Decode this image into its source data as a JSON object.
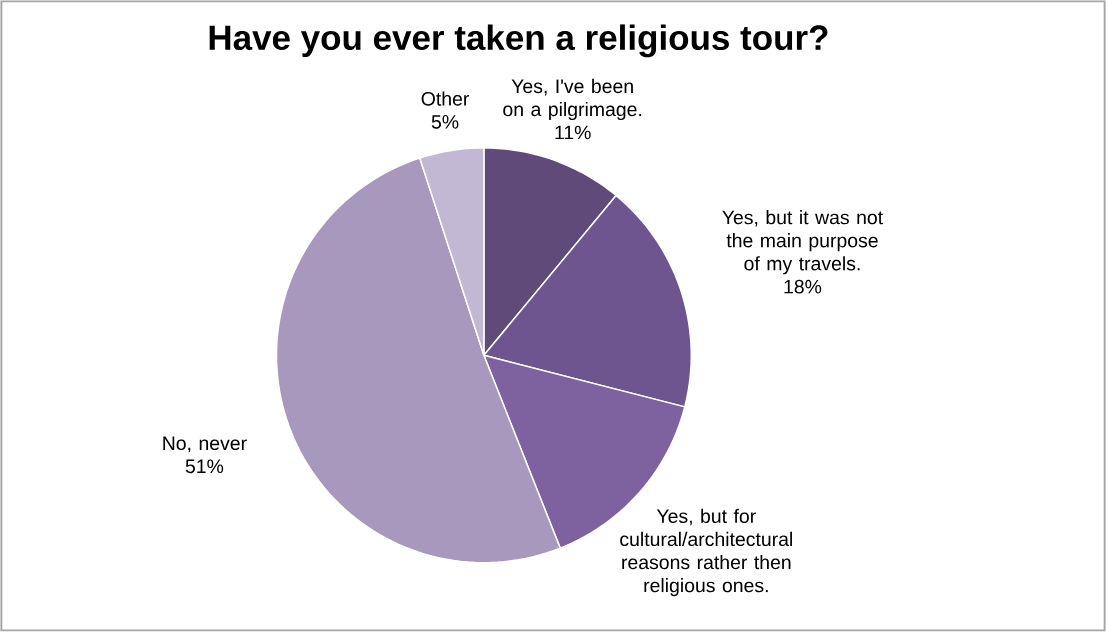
{
  "chart_data": {
    "type": "pie",
    "title": "Have you ever taken a religious tour?",
    "categories": [
      "Yes, I've been on a pilgrimage.",
      "Yes, but it was not the main purpose of my travels.",
      "Yes, but for cultural/architectural reasons rather then religious ones.",
      "No, never",
      "Other"
    ],
    "values": [
      11,
      18,
      15,
      51,
      5
    ],
    "value_labels": [
      "11%",
      "18%",
      null,
      "51%",
      "5%"
    ],
    "colors": [
      "#5f4a7a",
      "#6e5590",
      "#7e62a0",
      "#a898bd",
      "#c2b8d3"
    ]
  }
}
